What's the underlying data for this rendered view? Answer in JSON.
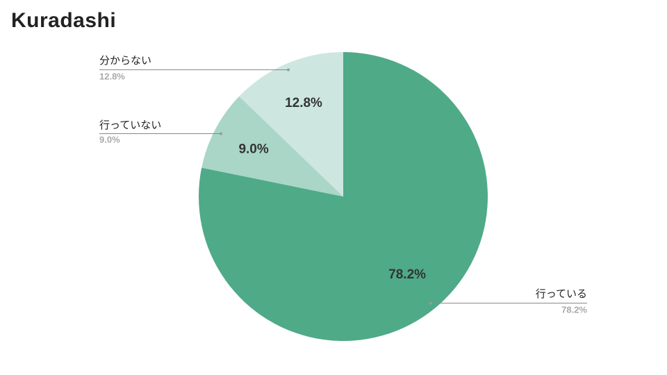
{
  "brand": "Kuradashi",
  "chart_data": {
    "type": "pie",
    "categories": [
      "行っている",
      "行っていない",
      "分からない"
    ],
    "values": [
      78.2,
      9.0,
      12.8
    ],
    "value_labels": [
      "78.2%",
      "9.0%",
      "12.8%"
    ],
    "colors": [
      "#4faa88",
      "#a9d6c7",
      "#cde7e0"
    ]
  }
}
